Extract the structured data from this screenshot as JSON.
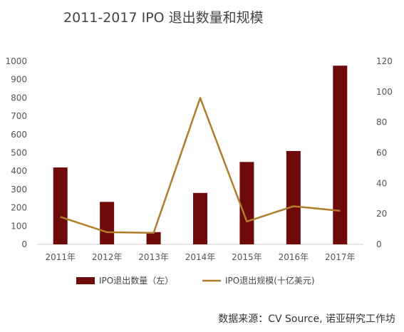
{
  "chart_data": {
    "type": "bar",
    "title": "2011-2017 IPO 退出数量和规模",
    "categories": [
      "2011年",
      "2012年",
      "2013年",
      "2014年",
      "2015年",
      "2016年",
      "2017年"
    ],
    "series": [
      {
        "name": "IPO退出数量（左）",
        "type": "bar",
        "axis": "left",
        "color": "#6e0a0a",
        "values": [
          420,
          232,
          67,
          281,
          450,
          510,
          976
        ]
      },
      {
        "name": "IPO退出规模(十亿美元)",
        "type": "line",
        "axis": "right",
        "color": "#b07d2b",
        "values": [
          18,
          8,
          7.5,
          96,
          15,
          25,
          22
        ]
      }
    ],
    "y_left": {
      "lim": [
        0,
        1000
      ],
      "ticks": [
        "0",
        "100",
        "200",
        "300",
        "400",
        "500",
        "600",
        "700",
        "800",
        "900",
        "1000"
      ]
    },
    "y_right": {
      "lim": [
        0,
        120
      ],
      "ticks": [
        "0",
        "20",
        "40",
        "60",
        "80",
        "100",
        "120"
      ]
    },
    "grid": false,
    "legend_position": "bottom"
  },
  "source": "数据来源：CV Source, 诺亚研究工作坊"
}
